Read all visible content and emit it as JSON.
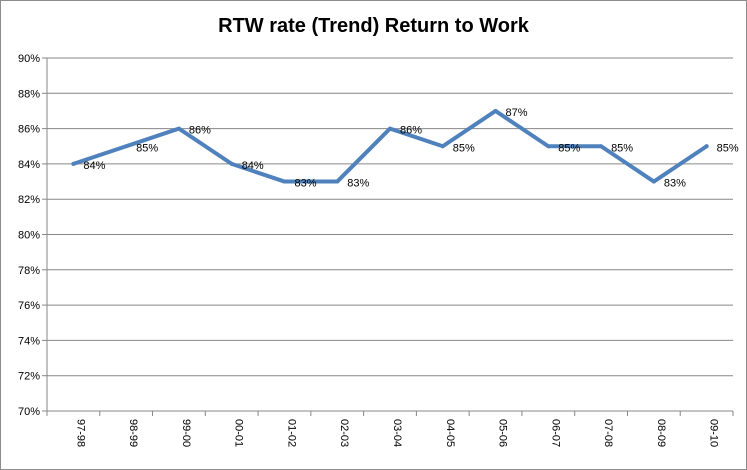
{
  "chart_data": {
    "type": "line",
    "title": "RTW rate (Trend) Return to Work",
    "xlabel": "",
    "ylabel": "",
    "categories": [
      "97-98",
      "98-99",
      "99-00",
      "00-01",
      "01-02",
      "02-03",
      "03-04",
      "04-05",
      "05-06",
      "06-07",
      "07-08",
      "08-09",
      "09-10"
    ],
    "series": [
      {
        "values": [
          84,
          85,
          86,
          84,
          83,
          83,
          86,
          85,
          87,
          85,
          85,
          83,
          85
        ]
      }
    ],
    "data_labels": [
      "84%",
      "85%",
      "86%",
      "84%",
      "83%",
      "83%",
      "86%",
      "85%",
      "87%",
      "85%",
      "85%",
      "83%",
      "85%"
    ],
    "ylim": [
      70,
      90
    ],
    "y_ticks": [
      "70%",
      "72%",
      "74%",
      "76%",
      "78%",
      "80%",
      "82%",
      "84%",
      "86%",
      "88%",
      "90%"
    ],
    "grid": true,
    "legend": "none",
    "line_color": "#4F81BD"
  }
}
